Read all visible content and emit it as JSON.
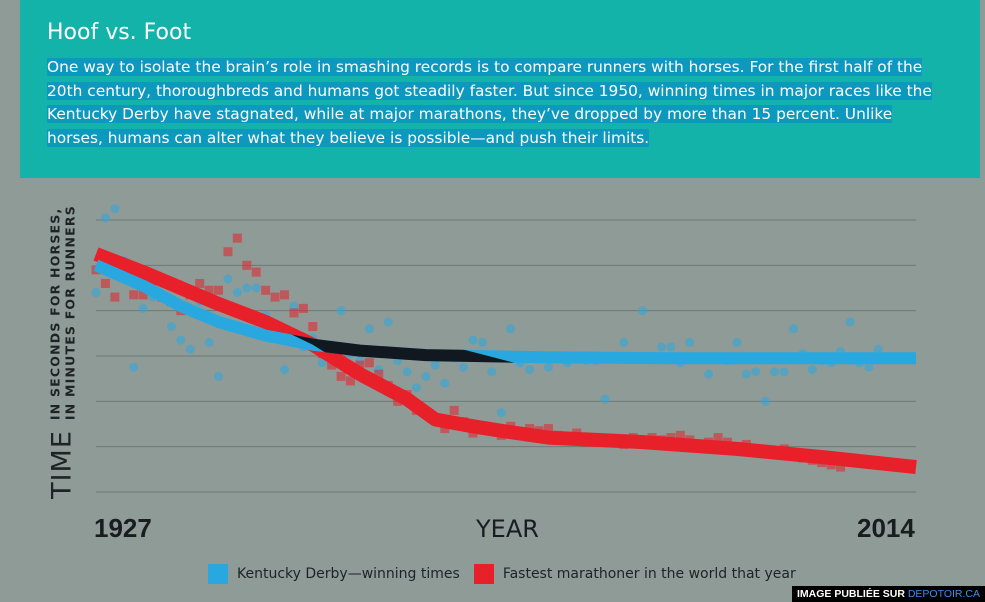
{
  "header": {
    "title": "Hoof vs. Foot",
    "body": "One way to isolate the brain’s role in smashing records is to compare runners with horses. For the first half of the 20th century, thoroughbreds and humans got steadily faster. But since 1950, winning times in major races like the Kentucky Derby have stagnated, while at major marathons, they’ve dropped by more than 15 percent. Unlike horses, humans can alter what they believe is possible—and push their limits."
  },
  "credit": {
    "prefix": "IMAGE PUBLIÉE SUR",
    "site": "DEPOTOIR.CA"
  },
  "chart_data": {
    "type": "scatter",
    "ylabel_big": "TIME",
    "ylabel_line1": "IN SECONDS FOR HORSES,",
    "ylabel_line2": "IN MINUTES FOR RUNNERS",
    "xlabel": "YEAR",
    "x_start_label": "1927",
    "x_end_label": "2014",
    "xlim": [
      1927,
      2014
    ],
    "ylim": [
      0,
      6
    ],
    "grid": true,
    "legend_position": "bottom",
    "colors": {
      "derby": "#29a8e0",
      "marathon": "#e8202a",
      "overlap": "#111820"
    },
    "series": [
      {
        "name": "Kentucky Derby—winning times",
        "color": "#29a8e0",
        "points": [
          [
            1927,
            4.4
          ],
          [
            1928,
            6.05
          ],
          [
            1929,
            6.25
          ],
          [
            1930,
            5.1
          ],
          [
            1931,
            2.75
          ],
          [
            1932,
            4.05
          ],
          [
            1933,
            4.3
          ],
          [
            1934,
            4.6
          ],
          [
            1935,
            3.65
          ],
          [
            1936,
            3.35
          ],
          [
            1937,
            3.15
          ],
          [
            1938,
            4.2
          ],
          [
            1939,
            3.3
          ],
          [
            1940,
            2.55
          ],
          [
            1941,
            4.7
          ],
          [
            1942,
            4.4
          ],
          [
            1943,
            4.5
          ],
          [
            1944,
            4.5
          ],
          [
            1945,
            3.9
          ],
          [
            1946,
            3.65
          ],
          [
            1947,
            2.7
          ],
          [
            1948,
            4.1
          ],
          [
            1949,
            3.2
          ],
          [
            1950,
            3.4
          ],
          [
            1951,
            2.85
          ],
          [
            1952,
            3.25
          ],
          [
            1953,
            4.0
          ],
          [
            1954,
            3.05
          ],
          [
            1955,
            2.9
          ],
          [
            1956,
            3.6
          ],
          [
            1957,
            2.7
          ],
          [
            1958,
            3.75
          ],
          [
            1959,
            2.9
          ],
          [
            1960,
            2.65
          ],
          [
            1961,
            2.3
          ],
          [
            1962,
            2.55
          ],
          [
            1963,
            2.8
          ],
          [
            1964,
            2.4
          ],
          [
            1965,
            2.95
          ],
          [
            1966,
            2.75
          ],
          [
            1967,
            3.35
          ],
          [
            1968,
            3.3
          ],
          [
            1969,
            2.65
          ],
          [
            1970,
            1.75
          ],
          [
            1971,
            3.6
          ],
          [
            1972,
            2.85
          ],
          [
            1973,
            2.7
          ],
          [
            1974,
            2.95
          ],
          [
            1975,
            2.75
          ],
          [
            1976,
            2.95
          ],
          [
            1977,
            2.85
          ],
          [
            1978,
            2.95
          ],
          [
            1979,
            2.9
          ],
          [
            1980,
            2.9
          ],
          [
            1981,
            2.05
          ],
          [
            1982,
            3.0
          ],
          [
            1983,
            3.3
          ],
          [
            1984,
            2.95
          ],
          [
            1985,
            4.0
          ],
          [
            1986,
            2.95
          ],
          [
            1987,
            3.2
          ],
          [
            1988,
            3.2
          ],
          [
            1989,
            2.85
          ],
          [
            1990,
            3.3
          ],
          [
            1991,
            2.95
          ],
          [
            1992,
            2.6
          ],
          [
            1993,
            2.95
          ],
          [
            1994,
            2.9
          ],
          [
            1995,
            3.3
          ],
          [
            1996,
            2.6
          ],
          [
            1997,
            2.65
          ],
          [
            1998,
            2.0
          ],
          [
            1999,
            2.65
          ],
          [
            2000,
            2.65
          ],
          [
            2001,
            3.6
          ],
          [
            2002,
            3.05
          ],
          [
            2003,
            2.7
          ],
          [
            2004,
            2.9
          ],
          [
            2005,
            2.85
          ],
          [
            2006,
            3.1
          ],
          [
            2007,
            3.75
          ],
          [
            2008,
            2.85
          ],
          [
            2009,
            2.75
          ],
          [
            2010,
            3.15
          ]
        ]
      },
      {
        "name": "Fastest marathoner in the world that year",
        "color": "#e8202a",
        "points": [
          [
            1927,
            4.9
          ],
          [
            1928,
            4.6
          ],
          [
            1929,
            4.3
          ],
          [
            1930,
            5.0
          ],
          [
            1931,
            4.35
          ],
          [
            1932,
            4.35
          ],
          [
            1933,
            4.65
          ],
          [
            1934,
            4.3
          ],
          [
            1935,
            4.2
          ],
          [
            1936,
            4.0
          ],
          [
            1937,
            4.35
          ],
          [
            1938,
            4.6
          ],
          [
            1939,
            4.45
          ],
          [
            1940,
            4.45
          ],
          [
            1941,
            5.3
          ],
          [
            1942,
            5.6
          ],
          [
            1943,
            5.0
          ],
          [
            1944,
            4.85
          ],
          [
            1945,
            4.45
          ],
          [
            1946,
            4.3
          ],
          [
            1947,
            4.35
          ],
          [
            1948,
            3.95
          ],
          [
            1949,
            4.05
          ],
          [
            1950,
            3.65
          ],
          [
            1951,
            3.05
          ],
          [
            1952,
            2.8
          ],
          [
            1953,
            2.55
          ],
          [
            1954,
            2.45
          ],
          [
            1955,
            2.8
          ],
          [
            1956,
            2.85
          ],
          [
            1957,
            2.6
          ],
          [
            1958,
            2.35
          ],
          [
            1959,
            2.0
          ],
          [
            1960,
            2.15
          ],
          [
            1961,
            1.8
          ],
          [
            1962,
            1.75
          ],
          [
            1963,
            1.6
          ],
          [
            1964,
            1.4
          ],
          [
            1965,
            1.8
          ],
          [
            1966,
            1.55
          ],
          [
            1967,
            1.3
          ],
          [
            1968,
            1.45
          ],
          [
            1969,
            1.35
          ],
          [
            1970,
            1.25
          ],
          [
            1971,
            1.45
          ],
          [
            1972,
            1.3
          ],
          [
            1973,
            1.4
          ],
          [
            1974,
            1.35
          ],
          [
            1975,
            1.4
          ],
          [
            1976,
            1.25
          ],
          [
            1977,
            1.2
          ],
          [
            1978,
            1.3
          ],
          [
            1979,
            1.1
          ],
          [
            1980,
            1.2
          ],
          [
            1981,
            1.1
          ],
          [
            1982,
            1.1
          ],
          [
            1983,
            1.05
          ],
          [
            1984,
            1.2
          ],
          [
            1985,
            1.15
          ],
          [
            1986,
            1.2
          ],
          [
            1987,
            1.15
          ],
          [
            1988,
            1.2
          ],
          [
            1989,
            1.25
          ],
          [
            1990,
            1.15
          ],
          [
            1991,
            1.05
          ],
          [
            1992,
            1.1
          ],
          [
            1993,
            1.2
          ],
          [
            1994,
            1.1
          ],
          [
            1995,
            1.0
          ],
          [
            1996,
            1.05
          ],
          [
            1997,
            0.95
          ],
          [
            1998,
            0.85
          ],
          [
            1999,
            0.85
          ],
          [
            2000,
            0.95
          ],
          [
            2001,
            0.8
          ],
          [
            2002,
            0.75
          ],
          [
            2003,
            0.7
          ],
          [
            2004,
            0.65
          ],
          [
            2005,
            0.6
          ],
          [
            2006,
            0.55
          ]
        ]
      }
    ],
    "trend_derby": [
      [
        1927,
        5.0
      ],
      [
        1932,
        4.55
      ],
      [
        1936,
        4.1
      ],
      [
        1940,
        3.75
      ],
      [
        1945,
        3.45
      ],
      [
        1950,
        3.25
      ],
      [
        1955,
        3.12
      ],
      [
        1962,
        3.02
      ],
      [
        1975,
        2.97
      ],
      [
        1990,
        2.95
      ],
      [
        2014,
        2.95
      ]
    ],
    "trend_marathon": [
      [
        1927,
        5.25
      ],
      [
        1932,
        4.85
      ],
      [
        1936,
        4.5
      ],
      [
        1940,
        4.15
      ],
      [
        1945,
        3.75
      ],
      [
        1950,
        3.25
      ],
      [
        1955,
        2.6
      ],
      [
        1960,
        2.05
      ],
      [
        1963,
        1.6
      ],
      [
        1967,
        1.45
      ],
      [
        1970,
        1.35
      ],
      [
        1975,
        1.2
      ],
      [
        1985,
        1.1
      ],
      [
        1995,
        0.95
      ],
      [
        2005,
        0.75
      ],
      [
        2014,
        0.55
      ]
    ]
  }
}
